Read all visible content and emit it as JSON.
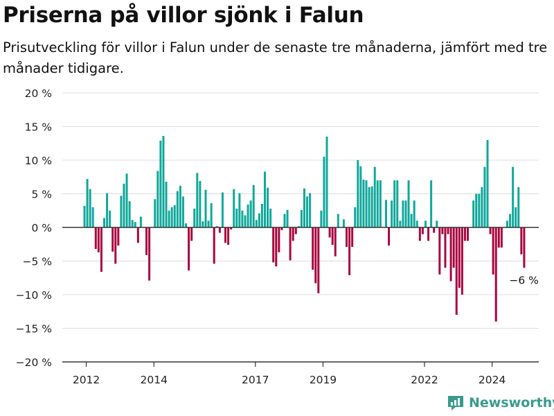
{
  "title": "Priserna på villor sjönk i Falun",
  "subtitle": "Prisutveckling för villor i Falun under de senaste tre månaderna, jämfört med tre månader tidigare.",
  "brand": "Newsworthy",
  "colors": {
    "positive": "#0fa89b",
    "negative": "#a8063f",
    "grid": "#dddddd",
    "zero_line": "#333333",
    "brand": "#3a9b8c"
  },
  "chart_data": {
    "type": "bar",
    "title": "Priserna på villor sjönk i Falun",
    "subtitle": "Prisutveckling för villor i Falun under de senaste tre månaderna, jämfört med tre månader tidigare.",
    "ylim": [
      -20,
      20
    ],
    "y_ticks": [
      20,
      15,
      10,
      5,
      0,
      -5,
      -10,
      -15,
      -20
    ],
    "y_tick_labels": [
      "20 %",
      "15 %",
      "10 %",
      "5 %",
      "0 %",
      "−5 %",
      "−10 %",
      "−15 %",
      "−20 %"
    ],
    "x_tick_labels": [
      "2012",
      "2014",
      "2017",
      "2019",
      "2022",
      "2024"
    ],
    "x_tick_bar_index": [
      1,
      25,
      61,
      85,
      121,
      145
    ],
    "grid": true,
    "annotation": "−6 %",
    "categories_note": "Monthly observations, 2012–2024",
    "values": [
      3.2,
      7.2,
      5.7,
      3.0,
      -3.2,
      -3.7,
      -6.6,
      1.4,
      5.1,
      2.5,
      -3.6,
      -5.4,
      -2.7,
      4.7,
      6.5,
      8.0,
      3.9,
      1.1,
      0.8,
      -2.3,
      1.6,
      0.0,
      -4.1,
      -7.9,
      0.0,
      4.2,
      8.4,
      12.9,
      13.6,
      6.8,
      2.5,
      3.0,
      3.3,
      5.4,
      6.2,
      4.6,
      0.6,
      -6.4,
      -2.0,
      2.8,
      8.1,
      6.9,
      0.9,
      5.6,
      1.0,
      3.6,
      -5.4,
      0.2,
      -0.8,
      5.2,
      -2.3,
      -2.6,
      -0.3,
      5.7,
      2.8,
      5.1,
      2.5,
      1.8,
      3.4,
      4.0,
      6.3,
      1.1,
      2.1,
      3.5,
      8.3,
      5.9,
      2.8,
      -5.2,
      -5.8,
      -3.7,
      -0.4,
      2.0,
      2.6,
      -4.9,
      -2.0,
      -1.0,
      0.2,
      2.6,
      5.8,
      4.6,
      5.1,
      -6.3,
      -8.3,
      -9.8,
      2.5,
      10.5,
      13.5,
      -1.5,
      -2.6,
      -4.3,
      2.0,
      0.0,
      1.2,
      -2.9,
      -7.1,
      -2.9,
      3.0,
      10.0,
      9.1,
      7.1,
      7.0,
      6.0,
      6.1,
      9.0,
      7.0,
      7.0,
      0.0,
      4.1,
      -2.7,
      4.0,
      7.0,
      7.0,
      1.0,
      4.0,
      4.0,
      7.0,
      2.0,
      4.0,
      1.0,
      -2.0,
      -1.0,
      1.0,
      -2.0,
      7.0,
      -0.8,
      1.0,
      -7.0,
      -1.0,
      -6.0,
      -1.0,
      -8.0,
      -6.0,
      -13.0,
      -9.0,
      -10.0,
      -2.0,
      -2.0,
      0.0,
      4.0,
      5.0,
      5.0,
      6.0,
      9.0,
      13.0,
      -1.0,
      -7.0,
      -14.0,
      -3.0,
      -3.0,
      0.0,
      1.0,
      2.0,
      9.0,
      3.0,
      6.0,
      -4.0,
      -6.0
    ]
  }
}
